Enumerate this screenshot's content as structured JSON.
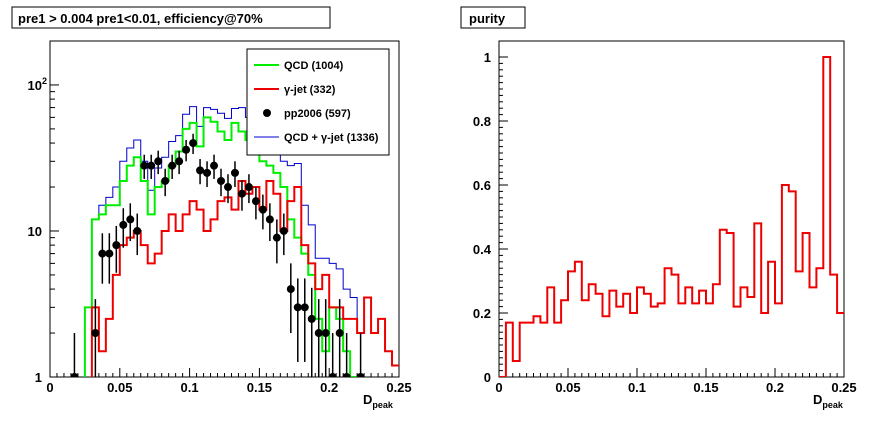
{
  "left_chart": {
    "title": "pre1 > 0.004  pre1<0.01, efficiency@70%",
    "xlabel_main": "D",
    "xlabel_sub": "peak"
  },
  "right_chart": {
    "title": "purity",
    "xlabel_main": "D",
    "xlabel_sub": "peak"
  },
  "chart_data": [
    {
      "type": "line",
      "title": "pre1 > 0.004  pre1<0.01, efficiency@70%",
      "xlabel": "D_peak",
      "ylabel": "",
      "xlim": [
        0,
        0.25
      ],
      "ylim": [
        1,
        200
      ],
      "y_scale": "log",
      "x_ticks": [
        "0",
        "0.05",
        "0.1",
        "0.15",
        "0.2",
        "0.25"
      ],
      "y_ticks": [
        "1",
        "10",
        "10^2"
      ],
      "legend_position": "top-right",
      "bin_width": 0.005,
      "series": [
        {
          "name": "QCD (1004)",
          "color": "#00ee00",
          "style": "step",
          "values": [
            0,
            0,
            0,
            0,
            0,
            3,
            12,
            13,
            15,
            15,
            22,
            28,
            32,
            22,
            13,
            20,
            22,
            28,
            35,
            50,
            55,
            38,
            60,
            56,
            48,
            42,
            55,
            48,
            42,
            38,
            30,
            28,
            25,
            20,
            12,
            9,
            7,
            5,
            2.5,
            1.5,
            3,
            2.5,
            1.5,
            1,
            0,
            0,
            0,
            0,
            0,
            0
          ]
        },
        {
          "name": "γ-jet (332)",
          "color": "#ee0000",
          "style": "step",
          "values": [
            0,
            0,
            0,
            0,
            0,
            0,
            3,
            1.5,
            2.5,
            5,
            8,
            9,
            10,
            8,
            6,
            7,
            10,
            13,
            10,
            13,
            16,
            14,
            10,
            12,
            16,
            17,
            14,
            22,
            18,
            20,
            14,
            22,
            18,
            10,
            16,
            20,
            8,
            6,
            4,
            5,
            3,
            3,
            2.5,
            2.5,
            2,
            3.5,
            2,
            2.5,
            1.5,
            1.2
          ]
        },
        {
          "name": "pp2006 (597)",
          "color": "#000000",
          "style": "points",
          "x": [
            0.0175,
            0.0325,
            0.0375,
            0.0425,
            0.0475,
            0.0525,
            0.0575,
            0.0625,
            0.0675,
            0.0725,
            0.0775,
            0.0825,
            0.0875,
            0.0925,
            0.0975,
            0.1025,
            0.1075,
            0.1125,
            0.1175,
            0.1225,
            0.1275,
            0.1325,
            0.1375,
            0.1425,
            0.1475,
            0.1525,
            0.1575,
            0.1625,
            0.1675,
            0.1725,
            0.1775,
            0.1825,
            0.1875,
            0.1925,
            0.1975,
            0.2025,
            0.2075,
            0.2125,
            0.2225
          ],
          "values": [
            1,
            2,
            7,
            7,
            8,
            11,
            12,
            10,
            28,
            28,
            30,
            22,
            28,
            30,
            36,
            40,
            26,
            25,
            28,
            22,
            20,
            25,
            18,
            20,
            16,
            14,
            12,
            9,
            10,
            4,
            3,
            3,
            2.5,
            2,
            2,
            1,
            2,
            1,
            1
          ]
        },
        {
          "name": "QCD + γ-jet (1336)",
          "color": "#0000cc",
          "style": "step",
          "values": [
            0,
            0,
            0,
            0,
            0,
            3,
            12,
            15,
            17,
            20,
            30,
            37,
            42,
            30,
            19,
            27,
            32,
            41,
            45,
            63,
            71,
            52,
            70,
            68,
            64,
            59,
            69,
            70,
            60,
            58,
            44,
            50,
            43,
            30,
            28,
            29,
            15,
            11,
            6.5,
            6.5,
            6,
            5.5,
            4,
            3.5,
            2,
            3.5,
            2,
            2.5,
            1.5,
            1.2
          ]
        }
      ]
    },
    {
      "type": "line",
      "title": "purity",
      "xlabel": "D_peak",
      "ylabel": "",
      "xlim": [
        0,
        0.25
      ],
      "ylim": [
        0,
        1.05
      ],
      "y_ticks": [
        "0",
        "0.2",
        "0.4",
        "0.6",
        "0.8",
        "1"
      ],
      "x_ticks": [
        "0",
        "0.05",
        "0.1",
        "0.15",
        "0.2",
        "0.25"
      ],
      "bin_width": 0.005,
      "series": [
        {
          "color": "#ee0000",
          "style": "step",
          "values": [
            0,
            0.17,
            0.05,
            0.17,
            0.17,
            0.19,
            0.17,
            0.28,
            0.17,
            0.24,
            0.33,
            0.36,
            0.24,
            0.29,
            0.26,
            0.19,
            0.27,
            0.22,
            0.26,
            0.2,
            0.28,
            0.26,
            0.22,
            0.23,
            0.34,
            0.32,
            0.23,
            0.28,
            0.23,
            0.27,
            0.23,
            0.29,
            0.46,
            0.45,
            0.22,
            0.28,
            0.25,
            0.48,
            0.2,
            0.36,
            0.23,
            0.6,
            0.58,
            0.33,
            0.45,
            0.28,
            0.34,
            1.0,
            0.32,
            0.2
          ]
        }
      ]
    }
  ]
}
